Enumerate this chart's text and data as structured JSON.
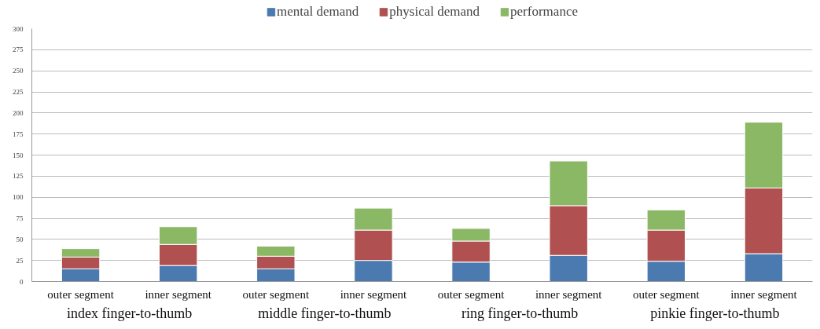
{
  "chart_data": {
    "type": "bar",
    "stacked": true,
    "categories": [
      "outer segment",
      "inner segment",
      "outer segment",
      "inner segment",
      "outer segment",
      "inner segment",
      "outer segment",
      "inner segment"
    ],
    "annotations": [
      "index finger-to-thumb",
      "middle finger-to-thumb",
      "ring finger-to-thumb",
      "pinkie finger-to-thumb"
    ],
    "series": [
      {
        "name": "mental demand",
        "color": "#4a7ab0",
        "values": [
          15,
          19,
          15,
          25,
          23,
          31,
          24,
          33
        ]
      },
      {
        "name": "physical demand",
        "color": "#b05050",
        "values": [
          14,
          25,
          15,
          36,
          25,
          59,
          37,
          78
        ]
      },
      {
        "name": "performance",
        "color": "#8ab865",
        "values": [
          10,
          21,
          12,
          26,
          15,
          53,
          24,
          78
        ]
      }
    ],
    "ylim": [
      0,
      300
    ],
    "yticks": [
      0,
      25,
      50,
      75,
      100,
      125,
      150,
      175,
      200,
      225,
      250,
      275,
      300
    ],
    "grid": "y",
    "legend": "top"
  }
}
